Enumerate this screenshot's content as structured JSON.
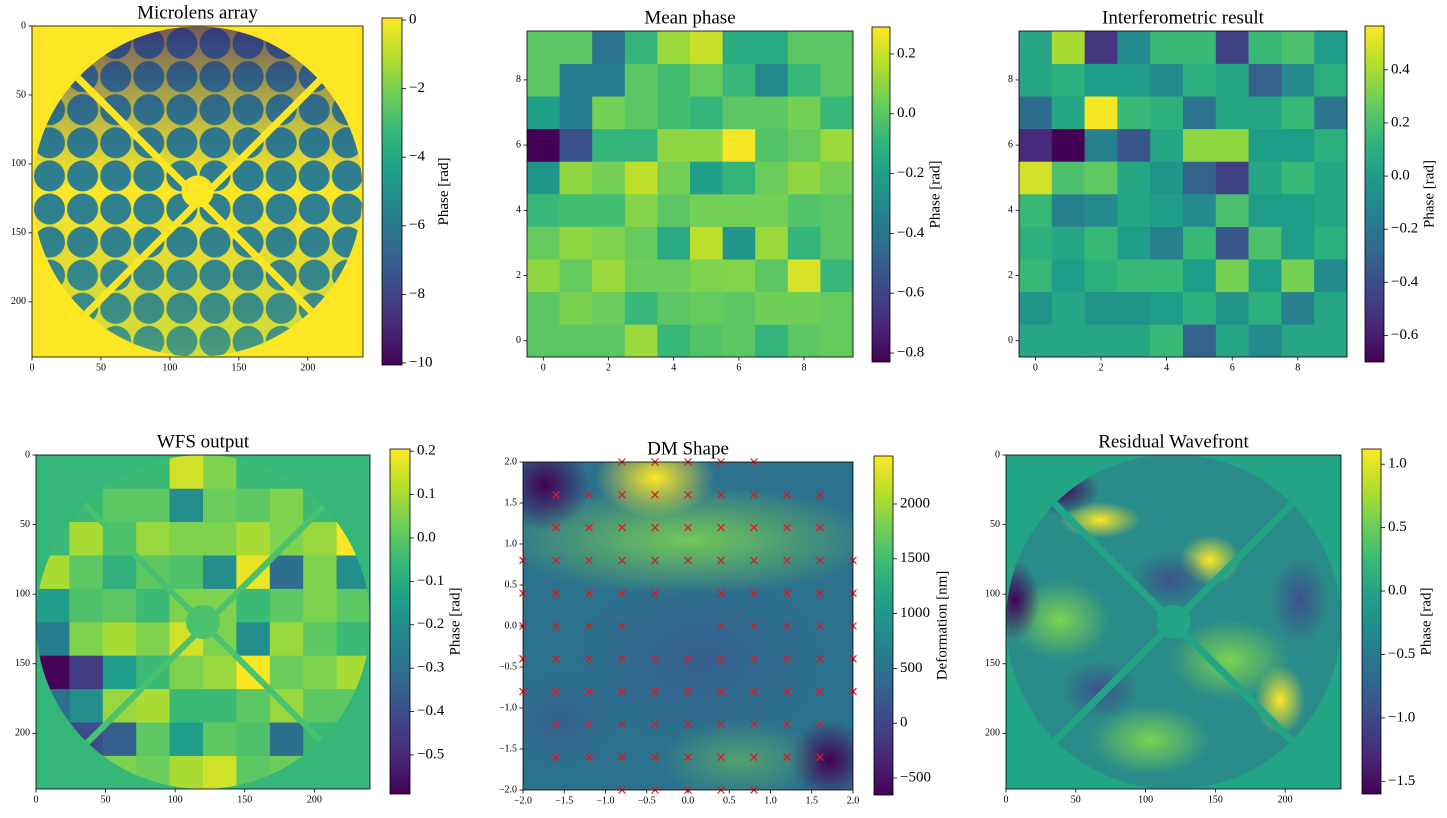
{
  "chart_data": [
    {
      "type": "image",
      "title": "Microlens array",
      "xlim": [
        0,
        240
      ],
      "ylim": [
        240,
        0
      ],
      "xticks": [
        0,
        50,
        100,
        150,
        200
      ],
      "yticks": [
        0,
        50,
        100,
        150,
        200
      ],
      "colorbar": {
        "label": "Phase [rad]",
        "lim": [
          -10.06,
          0.06
        ],
        "ticks": [
          0,
          {
            "value": -2,
            "label": "−2"
          },
          {
            "value": -4,
            "label": "−4"
          },
          {
            "value": -6,
            "label": "−6"
          },
          {
            "value": -8,
            "label": "−8"
          },
          {
            "value": -10,
            "label": "−10"
          }
        ]
      }
    },
    {
      "type": "heatmap",
      "title": "Mean phase",
      "xlim": [
        -0.5,
        9.5
      ],
      "ylim": [
        -0.5,
        9.5
      ],
      "xticks": [
        0,
        2,
        4,
        6,
        8
      ],
      "yticks": [
        0,
        2,
        4,
        6,
        8
      ],
      "z": [
        [
          0.0,
          0.0,
          0.0,
          0.12,
          -0.08,
          -0.02,
          0.0,
          -0.1,
          0.0,
          0.02
        ],
        [
          0.0,
          0.06,
          0.03,
          -0.08,
          0.0,
          0.02,
          0.0,
          0.04,
          0.04,
          0.02
        ],
        [
          0.1,
          0.02,
          0.12,
          0.03,
          0.03,
          0.07,
          0.08,
          0.0,
          0.22,
          -0.08
        ],
        [
          0.02,
          0.1,
          0.07,
          0.02,
          -0.15,
          0.18,
          -0.25,
          0.12,
          -0.1,
          0.0
        ],
        [
          -0.08,
          -0.05,
          -0.05,
          0.08,
          0.0,
          0.05,
          0.05,
          0.05,
          -0.02,
          0.0
        ],
        [
          -0.25,
          0.1,
          0.05,
          0.18,
          0.05,
          -0.2,
          -0.1,
          0.03,
          0.1,
          0.05
        ],
        [
          -0.83,
          -0.55,
          -0.1,
          -0.1,
          0.1,
          0.1,
          0.28,
          -0.02,
          0.02,
          0.12
        ],
        [
          -0.2,
          -0.35,
          0.05,
          0.0,
          -0.05,
          -0.1,
          0.0,
          0.0,
          0.05,
          -0.08
        ],
        [
          0.0,
          -0.35,
          -0.35,
          0.0,
          -0.05,
          0.02,
          -0.08,
          -0.3,
          -0.08,
          0.0
        ],
        [
          0.0,
          0.0,
          -0.4,
          -0.1,
          0.12,
          0.2,
          -0.15,
          -0.15,
          0.0,
          0.0
        ]
      ],
      "colorbar": {
        "label": "Phase [rad]",
        "lim": [
          -0.83,
          0.29
        ],
        "ticks": [
          0.2,
          {
            "value": 0,
            "label": "0.0"
          },
          {
            "value": -0.2,
            "label": "−0.2"
          },
          {
            "value": -0.4,
            "label": "−0.4"
          },
          {
            "value": -0.6,
            "label": "−0.6"
          },
          {
            "value": -0.8,
            "label": "−0.8"
          }
        ]
      }
    },
    {
      "type": "heatmap",
      "title": "Interferometric result",
      "xlim": [
        -0.5,
        9.5
      ],
      "ylim": [
        -0.5,
        9.5
      ],
      "xticks": [
        0,
        2,
        4,
        6,
        8
      ],
      "yticks": [
        0,
        2,
        4,
        6,
        8
      ],
      "z": [
        [
          0.05,
          0.05,
          0.05,
          0.05,
          0.15,
          -0.3,
          0.05,
          -0.1,
          0.05,
          0.05
        ],
        [
          -0.05,
          0.05,
          -0.05,
          -0.05,
          0.0,
          0.1,
          -0.05,
          0.1,
          -0.15,
          0.05
        ],
        [
          0.15,
          0.0,
          0.1,
          0.15,
          0.15,
          0.0,
          0.3,
          0.0,
          0.3,
          -0.1
        ],
        [
          0.1,
          0.05,
          0.15,
          0.0,
          -0.15,
          0.15,
          -0.35,
          0.2,
          0.0,
          0.1
        ],
        [
          0.15,
          -0.15,
          -0.1,
          0.05,
          0.0,
          -0.1,
          0.2,
          0.0,
          0.0,
          0.05
        ],
        [
          0.48,
          0.2,
          0.25,
          0.05,
          -0.05,
          -0.3,
          -0.45,
          0.05,
          0.15,
          0.05
        ],
        [
          -0.55,
          -0.7,
          -0.15,
          -0.35,
          0.05,
          0.35,
          0.35,
          0.0,
          0.0,
          0.1
        ],
        [
          -0.25,
          0.05,
          0.55,
          0.15,
          0.1,
          -0.2,
          0.05,
          0.05,
          0.15,
          -0.2
        ],
        [
          0.05,
          0.1,
          0.0,
          0.0,
          -0.1,
          0.1,
          0.05,
          -0.3,
          -0.1,
          0.1
        ],
        [
          0.05,
          0.4,
          -0.5,
          -0.1,
          0.15,
          0.15,
          -0.45,
          0.15,
          0.2,
          0.0
        ]
      ],
      "colorbar": {
        "label": "Phase [rad]",
        "lim": [
          -0.7,
          0.565
        ],
        "ticks": [
          0.4,
          0.2,
          {
            "value": 0,
            "label": "0.0"
          },
          {
            "value": -0.2,
            "label": "−0.2"
          },
          {
            "value": -0.4,
            "label": "−0.4"
          },
          {
            "value": -0.6,
            "label": "−0.6"
          }
        ]
      }
    },
    {
      "type": "heatmap",
      "title": "WFS output",
      "xlim": [
        0,
        240
      ],
      "ylim": [
        240,
        0
      ],
      "xticks": [
        0,
        50,
        100,
        150,
        200
      ],
      "yticks": [
        0,
        50,
        100,
        150,
        200
      ],
      "pupil": true,
      "z": [
        [
          -0.05,
          -0.05,
          0.05,
          0.02,
          0.1,
          0.15,
          0.0,
          0.02,
          -0.05,
          -0.05
        ],
        [
          -0.05,
          -0.4,
          -0.35,
          0.0,
          -0.15,
          0.0,
          -0.02,
          -0.3,
          -0.05,
          -0.05
        ],
        [
          -0.3,
          -0.2,
          0.08,
          0.1,
          -0.05,
          -0.05,
          0.0,
          0.08,
          0.0,
          0.0
        ],
        [
          -0.58,
          -0.45,
          -0.15,
          -0.05,
          0.05,
          0.08,
          0.2,
          0.02,
          0.05,
          0.1
        ],
        [
          -0.25,
          0.05,
          0.1,
          0.05,
          0.15,
          0.05,
          -0.2,
          0.08,
          0.0,
          -0.05
        ],
        [
          -0.15,
          -0.02,
          0.0,
          -0.05,
          0.05,
          0.05,
          -0.05,
          0.0,
          0.05,
          0.0
        ],
        [
          0.1,
          0.0,
          -0.08,
          0.0,
          -0.02,
          -0.2,
          0.18,
          -0.3,
          0.05,
          -0.2
        ],
        [
          -0.05,
          0.1,
          -0.02,
          0.08,
          0.05,
          0.05,
          0.1,
          0.05,
          0.08,
          0.2
        ],
        [
          -0.05,
          -0.05,
          0.0,
          0.0,
          -0.2,
          0.02,
          0.0,
          0.05,
          -0.05,
          -0.05
        ],
        [
          -0.05,
          -0.05,
          -0.05,
          -0.05,
          0.15,
          0.05,
          -0.05,
          -0.05,
          -0.05,
          -0.05
        ]
      ],
      "colorbar": {
        "label": "Phase [rad]",
        "lim": [
          -0.59,
          0.205
        ],
        "ticks": [
          0.2,
          0.1,
          {
            "value": 0,
            "label": "0.0"
          },
          {
            "value": -0.1,
            "label": "−0.1"
          },
          {
            "value": -0.2,
            "label": "−0.2"
          },
          {
            "value": -0.3,
            "label": "−0.3"
          },
          {
            "value": -0.4,
            "label": "−0.4"
          },
          {
            "value": -0.5,
            "label": "−0.5"
          }
        ]
      }
    },
    {
      "type": "image",
      "title": "DM Shape",
      "xlim": [
        -2,
        2
      ],
      "ylim": [
        -2,
        2
      ],
      "xticks": [
        {
          "value": -2,
          "label": "−2.0"
        },
        {
          "value": -1.5,
          "label": "−1.5"
        },
        {
          "value": -1,
          "label": "−1.0"
        },
        {
          "value": -0.5,
          "label": "−0.5"
        },
        {
          "value": 0,
          "label": "0.0"
        },
        0.5,
        {
          "value": 1,
          "label": "1.0"
        },
        1.5,
        {
          "value": 2,
          "label": "2.0"
        }
      ],
      "yticks": [
        {
          "value": -2,
          "label": "−2.0"
        },
        {
          "value": -1.5,
          "label": "−1.5"
        },
        {
          "value": -1,
          "label": "−1.0"
        },
        {
          "value": -0.5,
          "label": "−0.5"
        },
        {
          "value": 0,
          "label": "0.0"
        },
        0.5,
        {
          "value": 1,
          "label": "1.0"
        },
        1.5,
        {
          "value": 2,
          "label": "2.0"
        }
      ],
      "markers": {
        "color": "#e8141b",
        "x": [
          -0.8,
          -0.4,
          0,
          0.4,
          0.8,
          -1.6,
          -1.2,
          -0.8,
          -0.4,
          0,
          0.4,
          0.8,
          1.2,
          1.6,
          -1.6,
          -1.2,
          -0.8,
          -0.4,
          0,
          0.4,
          0.8,
          1.2,
          1.6,
          -2,
          -1.6,
          -1.2,
          -0.8,
          -0.4,
          0,
          0.4,
          0.8,
          1.2,
          1.6,
          2,
          -2,
          -1.6,
          -1.2,
          -0.8,
          -0.4,
          0.4,
          0.8,
          1.2,
          1.6,
          2,
          -2,
          -1.6,
          -1.2,
          -0.8,
          0.4,
          0.8,
          1.2,
          1.6,
          2,
          -2,
          -1.6,
          -1.2,
          -0.8,
          -0.4,
          0,
          0.4,
          0.8,
          1.2,
          1.6,
          2,
          -2,
          -1.6,
          -1.2,
          -0.8,
          -0.4,
          0,
          0.4,
          0.8,
          1.2,
          1.6,
          2,
          -1.6,
          -1.2,
          -0.8,
          -0.4,
          0,
          0.4,
          0.8,
          1.2,
          1.6,
          -1.6,
          -1.2,
          -0.8,
          -0.4,
          0,
          0.4,
          0.8,
          1.2,
          1.6,
          -0.8,
          -0.4,
          0,
          0.4,
          0.8
        ],
        "y": [
          2,
          2,
          2,
          2,
          2,
          1.6,
          1.6,
          1.6,
          1.6,
          1.6,
          1.6,
          1.6,
          1.6,
          1.6,
          1.2,
          1.2,
          1.2,
          1.2,
          1.2,
          1.2,
          1.2,
          1.2,
          1.2,
          0.8,
          0.8,
          0.8,
          0.8,
          0.8,
          0.8,
          0.8,
          0.8,
          0.8,
          0.8,
          0.8,
          0.4,
          0.4,
          0.4,
          0.4,
          0.4,
          0.4,
          0.4,
          0.4,
          0.4,
          0.4,
          0,
          0,
          0,
          0,
          0,
          0,
          0,
          0,
          0,
          -0.4,
          -0.4,
          -0.4,
          -0.4,
          -0.4,
          -0.4,
          -0.4,
          -0.4,
          -0.4,
          -0.4,
          -0.4,
          -0.8,
          -0.8,
          -0.8,
          -0.8,
          -0.8,
          -0.8,
          -0.8,
          -0.8,
          -0.8,
          -0.8,
          -0.8,
          -1.2,
          -1.2,
          -1.2,
          -1.2,
          -1.2,
          -1.2,
          -1.2,
          -1.2,
          -1.2,
          -1.6,
          -1.6,
          -1.6,
          -1.6,
          -1.6,
          -1.6,
          -1.6,
          -1.6,
          -1.6,
          -2,
          -2,
          -2,
          -2,
          -2
        ]
      },
      "colorbar": {
        "label": "Deformation [nm]",
        "lim": [
          -655,
          2438
        ],
        "ticks": [
          {
            "value": -500,
            "label": "−500"
          },
          0,
          500,
          1000,
          1500,
          2000
        ]
      }
    },
    {
      "type": "image",
      "title": "Residual Wavefront",
      "xlim": [
        0,
        240
      ],
      "ylim": [
        240,
        0
      ],
      "xticks": [
        0,
        50,
        100,
        150,
        200
      ],
      "yticks": [
        0,
        50,
        100,
        150,
        200
      ],
      "colorbar": {
        "label": "Phase [rad]",
        "lim": [
          -1.6,
          1.12
        ],
        "ticks": [
          {
            "value": -1.5,
            "label": "−1.5"
          },
          {
            "value": -1,
            "label": "−1.0"
          },
          {
            "value": -0.5,
            "label": "−0.5"
          },
          {
            "value": 0,
            "label": "0.0"
          },
          0.5,
          {
            "value": 1,
            "label": "1.0"
          }
        ]
      }
    }
  ]
}
